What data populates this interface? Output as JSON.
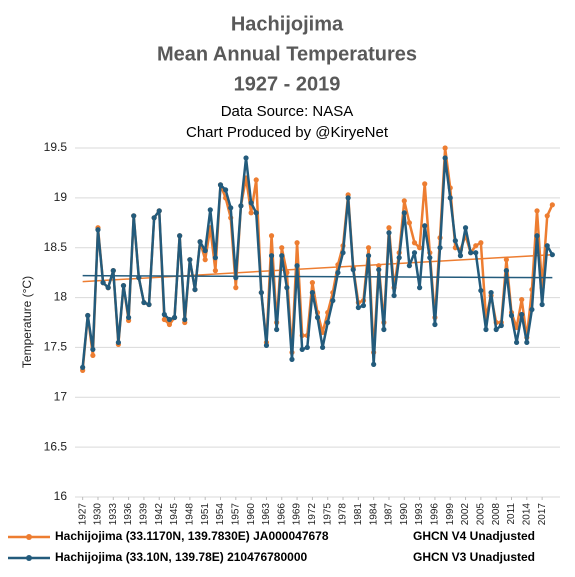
{
  "chart_data": {
    "type": "line",
    "title": [
      "Hachijojima",
      "Mean Annual Temperatures",
      "1927 - 2019"
    ],
    "subtitle": [
      "Data Source: NASA",
      "Chart Produced by @KiryeNet"
    ],
    "y_label": "Temperature (°C)",
    "x": [
      1927,
      1928,
      1929,
      1930,
      1931,
      1932,
      1933,
      1934,
      1935,
      1936,
      1937,
      1938,
      1939,
      1940,
      1941,
      1942,
      1943,
      1944,
      1945,
      1946,
      1947,
      1948,
      1949,
      1950,
      1951,
      1952,
      1953,
      1954,
      1955,
      1956,
      1957,
      1958,
      1959,
      1960,
      1961,
      1962,
      1963,
      1964,
      1965,
      1966,
      1967,
      1968,
      1969,
      1970,
      1971,
      1972,
      1973,
      1974,
      1975,
      1976,
      1977,
      1978,
      1979,
      1980,
      1981,
      1982,
      1983,
      1984,
      1985,
      1986,
      1987,
      1988,
      1989,
      1990,
      1991,
      1992,
      1993,
      1994,
      1995,
      1996,
      1997,
      1998,
      1999,
      2000,
      2001,
      2002,
      2003,
      2004,
      2005,
      2006,
      2007,
      2008,
      2009,
      2010,
      2011,
      2012,
      2013,
      2014,
      2015,
      2016,
      2017,
      2018,
      2019
    ],
    "xlim": [
      1925.5,
      2020.5
    ],
    "xticks": [
      1927,
      1930,
      1933,
      1936,
      1939,
      1942,
      1945,
      1948,
      1951,
      1954,
      1957,
      1960,
      1963,
      1966,
      1969,
      1972,
      1975,
      1978,
      1981,
      1984,
      1987,
      1990,
      1993,
      1996,
      1999,
      2002,
      2005,
      2008,
      2011,
      2014,
      2017
    ],
    "ylim": [
      16,
      19.5
    ],
    "yticks": [
      16,
      16.5,
      17,
      17.5,
      18,
      18.5,
      19,
      19.5
    ],
    "grid": true,
    "series": [
      {
        "name": "Hachijojima (33.1170N, 139.7830E) JA000047678",
        "source": "GHCN V4 Unadjusted",
        "color": "#ed7d31",
        "trend": [
          18.16,
          18.43
        ],
        "values": [
          17.27,
          17.82,
          17.42,
          18.7,
          18.15,
          18.1,
          18.27,
          17.53,
          18.12,
          17.77,
          18.82,
          18.2,
          17.95,
          17.93,
          18.8,
          18.87,
          17.78,
          17.73,
          17.8,
          18.62,
          17.75,
          18.38,
          18.08,
          18.56,
          18.38,
          18.7,
          18.27,
          19.13,
          19.0,
          18.8,
          18.1,
          18.92,
          19.2,
          18.85,
          19.18,
          18.05,
          17.55,
          18.62,
          17.75,
          18.5,
          18.25,
          17.45,
          18.55,
          17.62,
          17.62,
          18.15,
          17.85,
          17.65,
          17.85,
          18.05,
          18.33,
          18.52,
          19.03,
          18.3,
          17.95,
          17.97,
          18.5,
          17.45,
          18.32,
          17.75,
          18.7,
          18.1,
          18.45,
          18.97,
          18.75,
          18.55,
          18.5,
          19.14,
          18.45,
          17.8,
          18.6,
          19.5,
          19.1,
          18.5,
          18.48,
          18.62,
          18.45,
          18.52,
          18.55,
          17.8,
          18.02,
          17.75,
          17.75,
          18.38,
          17.85,
          17.7,
          17.98,
          17.6,
          18.08,
          18.87,
          18.1,
          18.82,
          18.93
        ]
      },
      {
        "name": "Hachijojima (33.10N, 139.78E) 210476780000",
        "source": "GHCN V3 Unadjusted",
        "color": "#235b7c",
        "trend": [
          18.22,
          18.2
        ],
        "values": [
          17.3,
          17.82,
          17.48,
          18.68,
          18.15,
          18.1,
          18.27,
          17.55,
          18.12,
          17.8,
          18.82,
          18.2,
          17.95,
          17.93,
          18.8,
          18.87,
          17.83,
          17.78,
          17.8,
          18.62,
          17.78,
          18.38,
          18.08,
          18.56,
          18.47,
          18.88,
          18.4,
          19.13,
          19.08,
          18.9,
          18.2,
          18.92,
          19.4,
          18.95,
          18.85,
          18.05,
          17.52,
          18.42,
          17.68,
          18.42,
          18.1,
          17.38,
          18.32,
          17.48,
          17.5,
          18.05,
          17.8,
          17.5,
          17.75,
          17.97,
          18.25,
          18.45,
          19.0,
          18.28,
          17.9,
          17.92,
          18.42,
          17.33,
          18.28,
          17.68,
          18.65,
          18.02,
          18.4,
          18.85,
          18.32,
          18.45,
          18.1,
          18.72,
          18.4,
          17.73,
          18.5,
          19.4,
          19.0,
          18.57,
          18.42,
          18.7,
          18.45,
          18.45,
          18.07,
          17.68,
          18.05,
          17.68,
          17.72,
          18.27,
          17.82,
          17.55,
          17.83,
          17.55,
          17.88,
          18.62,
          17.93,
          18.52,
          18.43
        ]
      }
    ]
  }
}
